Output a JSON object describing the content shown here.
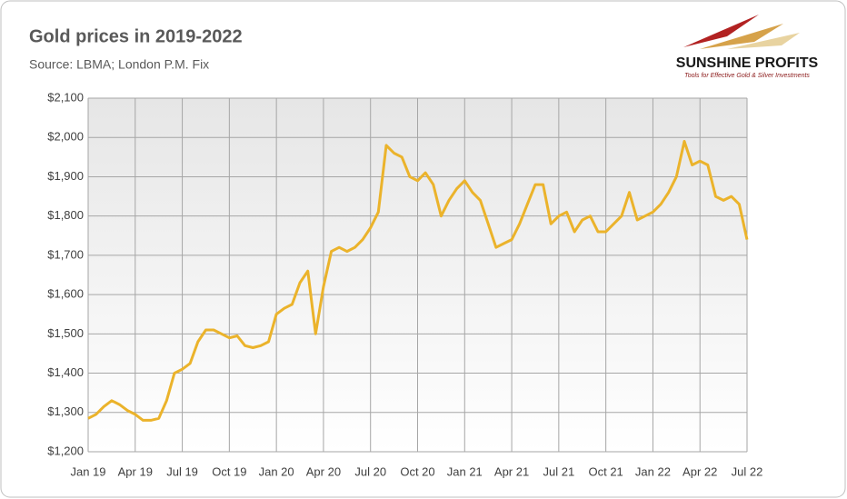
{
  "chart_data": {
    "type": "line",
    "title": "Gold prices in 2019-2022",
    "subtitle": "Source: LBMA; London P.M. Fix",
    "logo": {
      "name": "SUNSHINE PROFITS",
      "tagline": "Tools for Effective Gold & Silver Investments"
    },
    "categories": [
      "Jan 19",
      null,
      null,
      null,
      null,
      null,
      "Apr 19",
      null,
      null,
      null,
      null,
      null,
      "Jul 19",
      null,
      null,
      null,
      null,
      null,
      "Oct 19",
      null,
      null,
      null,
      null,
      null,
      "Jan 20",
      null,
      null,
      null,
      null,
      null,
      "Apr 20",
      null,
      null,
      null,
      null,
      null,
      "Jul 20",
      null,
      null,
      null,
      null,
      null,
      "Oct 20",
      null,
      null,
      null,
      null,
      null,
      "Jan 21",
      null,
      null,
      null,
      null,
      null,
      "Apr 21",
      null,
      null,
      null,
      null,
      null,
      "Jul 21",
      null,
      null,
      null,
      null,
      null,
      "Oct 21",
      null,
      null,
      null,
      null,
      null,
      "Jan 22",
      null,
      null,
      null,
      null,
      null,
      "Apr 22",
      null,
      null,
      null,
      null,
      null,
      "Jul 22"
    ],
    "values": [
      1285,
      1295,
      1315,
      1330,
      1320,
      1305,
      1295,
      1280,
      1280,
      1285,
      1330,
      1400,
      1410,
      1425,
      1480,
      1510,
      1510,
      1500,
      1490,
      1495,
      1470,
      1465,
      1470,
      1480,
      1550,
      1565,
      1575,
      1630,
      1660,
      1500,
      1620,
      1710,
      1720,
      1710,
      1720,
      1740,
      1770,
      1810,
      1980,
      1960,
      1950,
      1900,
      1890,
      1910,
      1880,
      1800,
      1840,
      1870,
      1890,
      1860,
      1840,
      1780,
      1720,
      1730,
      1740,
      1780,
      1830,
      1880,
      1880,
      1780,
      1800,
      1810,
      1760,
      1790,
      1800,
      1760,
      1760,
      1780,
      1800,
      1860,
      1790,
      1800,
      1810,
      1830,
      1860,
      1900,
      1990,
      1930,
      1940,
      1930,
      1850,
      1840,
      1850,
      1830,
      1740
    ],
    "color": "#ebb32b",
    "ylim": [
      1200,
      2100
    ],
    "yticks": [
      {
        "value": 1200,
        "label": "$1,200"
      },
      {
        "value": 1300,
        "label": "$1,300"
      },
      {
        "value": 1400,
        "label": "$1,400"
      },
      {
        "value": 1500,
        "label": "$1,500"
      },
      {
        "value": 1600,
        "label": "$1,600"
      },
      {
        "value": 1700,
        "label": "$1,700"
      },
      {
        "value": 1800,
        "label": "$1,800"
      },
      {
        "value": 1900,
        "label": "$1,900"
      },
      {
        "value": 2000,
        "label": "$2,000"
      },
      {
        "value": 2100,
        "label": "$2,100"
      }
    ],
    "grid": true
  }
}
